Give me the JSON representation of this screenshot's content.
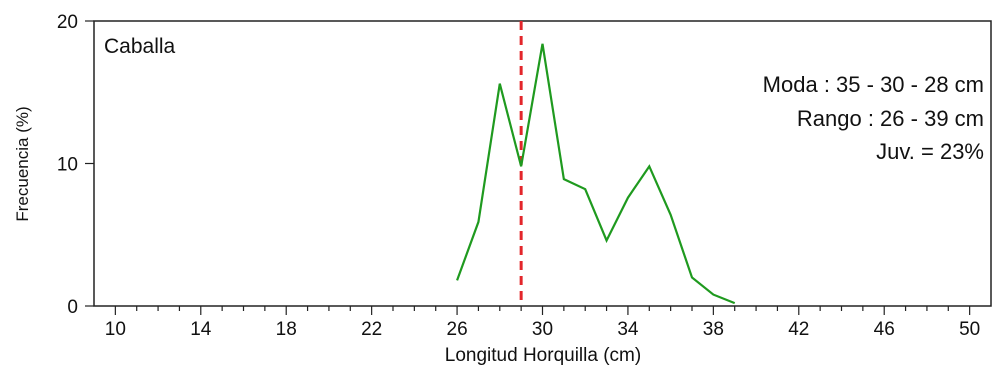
{
  "chart_data": {
    "type": "line",
    "title": "",
    "xlabel": "Longitud Horquilla (cm)",
    "ylabel": "Frecuencia (%)",
    "xlim": [
      9,
      51
    ],
    "ylim": [
      0,
      20
    ],
    "x_ticks": [
      10,
      14,
      18,
      22,
      26,
      30,
      34,
      38,
      42,
      46,
      50
    ],
    "x_tick_labels": [
      "10",
      "14",
      "18",
      "22",
      "26",
      "30",
      "34",
      "38",
      "42",
      "46",
      "50"
    ],
    "y_ticks": [
      0,
      10,
      20
    ],
    "y_tick_labels": [
      "0",
      "10",
      "20"
    ],
    "grid": false,
    "species_label": "Caballa",
    "annotations": [
      "Moda : 35 - 30 - 28 cm",
      "Rango : 26 - 39 cm",
      "Juv. = 23%"
    ],
    "reference_line": {
      "x": 29,
      "style": "dashed",
      "color": "#e3262b"
    },
    "series_color": "#1f9a1f",
    "series": [
      {
        "name": "",
        "x": [
          26,
          27,
          28,
          29,
          30,
          31,
          32,
          33,
          34,
          35,
          36,
          37,
          38,
          39
        ],
        "values": [
          1.8,
          5.9,
          15.6,
          9.8,
          18.4,
          8.9,
          8.2,
          4.6,
          7.6,
          9.8,
          6.4,
          2.0,
          0.8,
          0.2
        ]
      }
    ]
  }
}
